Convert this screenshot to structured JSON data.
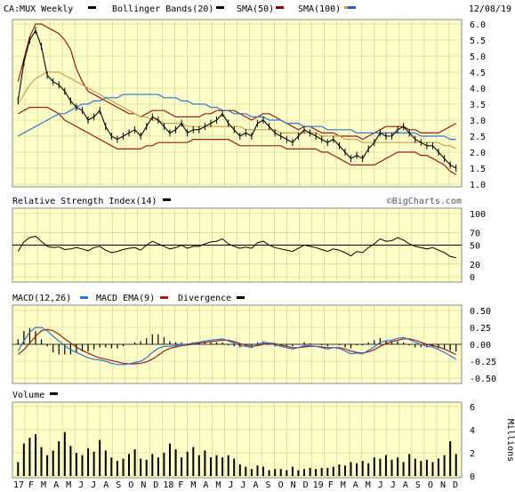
{
  "header": {
    "symbol": "CA:MUX Weekly",
    "indicators": [
      {
        "label": "Bollinger Bands(20)",
        "color": "#000000"
      },
      {
        "label": "SMA(50)",
        "color": "#8b0000"
      },
      {
        "label": "SMA(100)",
        "color": "#c8a040"
      }
    ],
    "sma100_color": "#1a5fd0",
    "date": "12/08/19"
  },
  "watermark": "©BigCharts.com",
  "colors": {
    "panel_bg": "#ffffc8",
    "grid": "#c8c890",
    "price": "#000000",
    "bollinger": "#9b1c1c",
    "sma50": "#c9a24a",
    "sma100": "#2f73d8",
    "macd": "#2f73d8",
    "macd_ema": "#9b1c1c"
  },
  "x_axis": {
    "labels": [
      "17",
      "F",
      "M",
      "A",
      "M",
      "J",
      "J",
      "A",
      "S",
      "O",
      "N",
      "D",
      "18",
      "F",
      "M",
      "A",
      "M",
      "J",
      "J",
      "A",
      "S",
      "O",
      "N",
      "D",
      "19",
      "F",
      "M",
      "A",
      "M",
      "J",
      "J",
      "A",
      "S",
      "O",
      "N",
      "D"
    ]
  },
  "rsi_panel": {
    "label": "Relative Strength Index(14)",
    "ticks": [
      "100",
      "70",
      "50",
      "20",
      "0"
    ],
    "reference": 50
  },
  "macd_panel": {
    "legend": [
      {
        "label": "MACD(12,26)",
        "color": "#000000"
      },
      {
        "label": "MACD EMA(9)",
        "color": "#2f73d8"
      },
      {
        "label": "Divergence",
        "color": "#000000"
      }
    ],
    "ticks": [
      "0.50",
      "0.25",
      "0.00",
      "-0.25",
      "-0.50"
    ]
  },
  "volume_panel": {
    "label": "Volume",
    "ticks": [
      "6",
      "4",
      "2",
      "0"
    ],
    "unit": "Millions"
  },
  "chart_data": [
    {
      "type": "line",
      "panel": "price",
      "title": "CA:MUX Weekly",
      "ylim": [
        1.0,
        6.0
      ],
      "yticks": [
        "6.0",
        "5.5",
        "5.0",
        "4.5",
        "4.0",
        "3.5",
        "3.0",
        "2.5",
        "2.0",
        "1.5",
        "1.0"
      ],
      "series": [
        {
          "name": "Price",
          "values": [
            3.6,
            4.8,
            5.5,
            5.8,
            5.3,
            4.4,
            4.2,
            4.1,
            3.9,
            3.6,
            3.4,
            3.3,
            3.0,
            3.1,
            3.3,
            2.8,
            2.5,
            2.4,
            2.5,
            2.6,
            2.7,
            2.5,
            2.8,
            3.1,
            3.0,
            2.8,
            2.6,
            2.7,
            2.9,
            2.6,
            2.7,
            2.7,
            2.8,
            2.9,
            3.0,
            3.2,
            2.9,
            2.7,
            2.5,
            2.6,
            2.5,
            2.9,
            3.0,
            2.8,
            2.6,
            2.5,
            2.4,
            2.3,
            2.5,
            2.7,
            2.6,
            2.5,
            2.4,
            2.3,
            2.4,
            2.2,
            2.0,
            1.8,
            1.9,
            1.8,
            2.1,
            2.3,
            2.6,
            2.5,
            2.5,
            2.7,
            2.8,
            2.6,
            2.4,
            2.3,
            2.2,
            2.2,
            2.0,
            1.8,
            1.6,
            1.5
          ]
        },
        {
          "name": "Bollinger Bands(20) Upper",
          "values": [
            4.2,
            4.9,
            5.6,
            6.0,
            6.0,
            5.9,
            5.8,
            5.7,
            5.5,
            5.2,
            4.6,
            4.2,
            3.9,
            3.8,
            3.7,
            3.6,
            3.5,
            3.4,
            3.3,
            3.2,
            3.2,
            3.1,
            3.2,
            3.3,
            3.3,
            3.3,
            3.2,
            3.1,
            3.1,
            3.1,
            3.1,
            3.1,
            3.2,
            3.2,
            3.3,
            3.3,
            3.3,
            3.3,
            3.2,
            3.1,
            3.0,
            3.1,
            3.2,
            3.2,
            3.1,
            3.0,
            2.9,
            2.8,
            2.7,
            2.8,
            2.8,
            2.7,
            2.6,
            2.6,
            2.6,
            2.5,
            2.5,
            2.5,
            2.5,
            2.4,
            2.5,
            2.6,
            2.7,
            2.8,
            2.8,
            2.8,
            2.8,
            2.7,
            2.7,
            2.6,
            2.6,
            2.6,
            2.6,
            2.7,
            2.8,
            2.9
          ]
        },
        {
          "name": "Bollinger Bands(20) Lower",
          "values": [
            3.2,
            3.3,
            3.4,
            3.4,
            3.4,
            3.4,
            3.3,
            3.2,
            3.0,
            2.9,
            2.8,
            2.7,
            2.6,
            2.5,
            2.4,
            2.3,
            2.2,
            2.1,
            2.1,
            2.1,
            2.1,
            2.1,
            2.2,
            2.2,
            2.3,
            2.3,
            2.3,
            2.3,
            2.3,
            2.3,
            2.4,
            2.4,
            2.4,
            2.4,
            2.4,
            2.4,
            2.4,
            2.3,
            2.2,
            2.2,
            2.2,
            2.2,
            2.2,
            2.2,
            2.2,
            2.2,
            2.1,
            2.1,
            2.1,
            2.1,
            2.1,
            2.1,
            2.0,
            2.0,
            1.9,
            1.8,
            1.7,
            1.6,
            1.6,
            1.6,
            1.6,
            1.6,
            1.7,
            1.8,
            1.9,
            2.0,
            2.0,
            2.0,
            2.0,
            1.9,
            1.9,
            1.8,
            1.7,
            1.6,
            1.4,
            1.3
          ]
        },
        {
          "name": "SMA(50)",
          "values": [
            3.5,
            3.8,
            4.1,
            4.3,
            4.4,
            4.5,
            4.5,
            4.5,
            4.4,
            4.3,
            4.2,
            4.1,
            4.0,
            3.9,
            3.8,
            3.7,
            3.6,
            3.5,
            3.4,
            3.3,
            3.2,
            3.1,
            3.1,
            3.0,
            3.0,
            2.9,
            2.9,
            2.9,
            2.9,
            2.8,
            2.8,
            2.8,
            2.8,
            2.8,
            2.8,
            2.8,
            2.8,
            2.8,
            2.8,
            2.7,
            2.7,
            2.7,
            2.7,
            2.7,
            2.7,
            2.6,
            2.6,
            2.6,
            2.6,
            2.6,
            2.6,
            2.6,
            2.5,
            2.5,
            2.5,
            2.5,
            2.4,
            2.4,
            2.4,
            2.3,
            2.3,
            2.3,
            2.3,
            2.3,
            2.3,
            2.3,
            2.3,
            2.3,
            2.3,
            2.3,
            2.3,
            2.3,
            2.3,
            2.2,
            2.2,
            2.1
          ]
        },
        {
          "name": "SMA(100)",
          "values": [
            2.5,
            2.6,
            2.7,
            2.8,
            2.9,
            3.0,
            3.1,
            3.2,
            3.2,
            3.3,
            3.4,
            3.5,
            3.5,
            3.6,
            3.6,
            3.7,
            3.7,
            3.7,
            3.8,
            3.8,
            3.8,
            3.8,
            3.8,
            3.8,
            3.8,
            3.7,
            3.7,
            3.7,
            3.6,
            3.6,
            3.5,
            3.5,
            3.5,
            3.4,
            3.4,
            3.3,
            3.3,
            3.2,
            3.2,
            3.2,
            3.1,
            3.1,
            3.1,
            3.0,
            3.0,
            3.0,
            2.9,
            2.9,
            2.9,
            2.8,
            2.8,
            2.8,
            2.8,
            2.7,
            2.7,
            2.7,
            2.7,
            2.7,
            2.6,
            2.6,
            2.6,
            2.6,
            2.6,
            2.6,
            2.6,
            2.6,
            2.6,
            2.6,
            2.6,
            2.5,
            2.5,
            2.5,
            2.5,
            2.5,
            2.4,
            2.4
          ]
        }
      ]
    },
    {
      "type": "line",
      "panel": "rsi",
      "title": "Relative Strength Index(14)",
      "ylim": [
        0,
        100
      ],
      "series": [
        {
          "name": "RSI(14)",
          "values": [
            40,
            55,
            62,
            64,
            56,
            48,
            46,
            47,
            43,
            44,
            46,
            44,
            41,
            46,
            48,
            42,
            38,
            40,
            43,
            45,
            46,
            42,
            50,
            56,
            52,
            48,
            44,
            46,
            50,
            45,
            48,
            48,
            52,
            55,
            56,
            60,
            52,
            48,
            45,
            47,
            45,
            54,
            56,
            50,
            46,
            44,
            42,
            40,
            45,
            50,
            48,
            46,
            43,
            40,
            44,
            42,
            38,
            33,
            40,
            38,
            46,
            52,
            60,
            56,
            57,
            62,
            58,
            52,
            48,
            46,
            44,
            46,
            42,
            38,
            32,
            30
          ]
        }
      ]
    },
    {
      "type": "line",
      "panel": "macd",
      "title": "MACD(12,26)",
      "ylim": [
        -0.5,
        0.5
      ],
      "series": [
        {
          "name": "MACD(12,26)",
          "values": [
            -0.1,
            0.05,
            0.18,
            0.25,
            0.25,
            0.2,
            0.12,
            0.05,
            -0.02,
            -0.08,
            -0.12,
            -0.16,
            -0.2,
            -0.22,
            -0.23,
            -0.25,
            -0.28,
            -0.3,
            -0.3,
            -0.29,
            -0.27,
            -0.25,
            -0.2,
            -0.12,
            -0.06,
            -0.03,
            -0.03,
            -0.02,
            0.0,
            0.0,
            0.02,
            0.03,
            0.05,
            0.06,
            0.07,
            0.08,
            0.05,
            0.02,
            -0.02,
            -0.03,
            -0.05,
            0.0,
            0.03,
            0.02,
            -0.01,
            -0.03,
            -0.05,
            -0.07,
            -0.05,
            -0.02,
            -0.02,
            -0.03,
            -0.05,
            -0.07,
            -0.05,
            -0.06,
            -0.1,
            -0.14,
            -0.13,
            -0.14,
            -0.09,
            -0.04,
            0.03,
            0.05,
            0.06,
            0.09,
            0.1,
            0.07,
            0.03,
            0.0,
            -0.03,
            -0.04,
            -0.08,
            -0.12,
            -0.17,
            -0.22
          ]
        },
        {
          "name": "MACD EMA(9)",
          "values": [
            -0.15,
            -0.08,
            0.02,
            0.12,
            0.2,
            0.22,
            0.2,
            0.15,
            0.08,
            0.02,
            -0.04,
            -0.09,
            -0.13,
            -0.17,
            -0.2,
            -0.22,
            -0.24,
            -0.26,
            -0.28,
            -0.29,
            -0.29,
            -0.28,
            -0.26,
            -0.22,
            -0.16,
            -0.1,
            -0.06,
            -0.04,
            -0.02,
            -0.01,
            0.0,
            0.02,
            0.03,
            0.04,
            0.05,
            0.06,
            0.06,
            0.04,
            0.01,
            -0.01,
            -0.03,
            -0.02,
            0.0,
            0.02,
            0.01,
            -0.01,
            -0.03,
            -0.05,
            -0.05,
            -0.04,
            -0.03,
            -0.03,
            -0.04,
            -0.05,
            -0.05,
            -0.05,
            -0.07,
            -0.1,
            -0.12,
            -0.13,
            -0.11,
            -0.08,
            -0.03,
            0.01,
            0.04,
            0.06,
            0.08,
            0.08,
            0.06,
            0.03,
            0.0,
            -0.02,
            -0.04,
            -0.07,
            -0.11,
            -0.15
          ]
        }
      ]
    },
    {
      "type": "bar",
      "panel": "volume",
      "title": "Volume",
      "ylabel": "Millions",
      "ylim": [
        0,
        6
      ],
      "values": [
        1.2,
        2.8,
        3.3,
        3.6,
        2.5,
        1.8,
        2.2,
        3.0,
        3.8,
        2.6,
        2.0,
        1.8,
        2.4,
        2.1,
        3.1,
        2.2,
        1.6,
        1.3,
        1.5,
        1.9,
        2.3,
        1.5,
        1.4,
        1.9,
        1.6,
        2.0,
        2.8,
        2.3,
        1.6,
        2.1,
        2.5,
        1.8,
        2.2,
        1.6,
        1.8,
        1.6,
        1.8,
        1.5,
        1.0,
        0.8,
        0.6,
        0.9,
        0.8,
        0.5,
        0.6,
        0.6,
        0.5,
        0.8,
        0.5,
        0.6,
        0.7,
        0.6,
        0.7,
        0.7,
        0.8,
        1.0,
        0.9,
        1.2,
        1.1,
        1.3,
        1.1,
        1.6,
        1.5,
        1.8,
        1.4,
        1.6,
        1.2,
        1.9,
        1.5,
        1.3,
        1.4,
        1.2,
        1.5,
        1.8,
        3.0,
        1.9
      ]
    }
  ]
}
